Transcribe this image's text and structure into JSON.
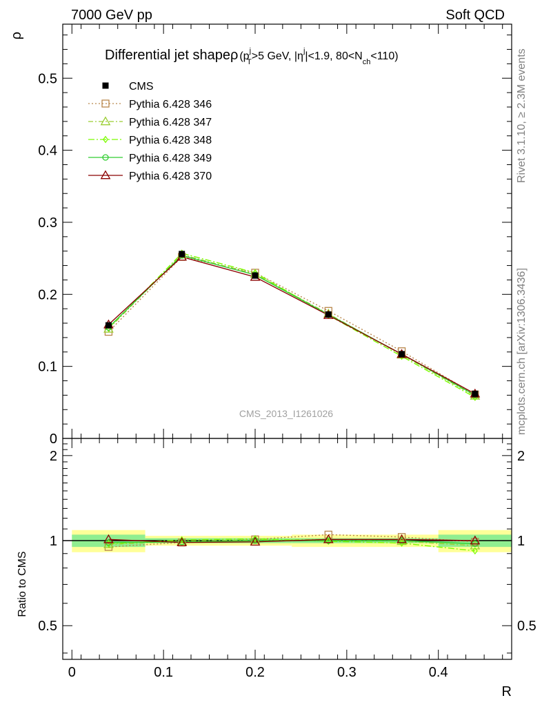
{
  "header": {
    "left": "7000 GeV pp",
    "right": "Soft QCD"
  },
  "plot_title": {
    "main": "Differential jet shapeρ",
    "sub": {
      "open": "(p",
      "sup_j": "j",
      "sub_T": "T",
      "mid1": ">5 GeV, |η",
      "mid2": "|<1.9, 80<N",
      "sub_ch": "ch",
      "close": "<110)"
    }
  },
  "side_labels": {
    "rivet": "Rivet 3.1.10, ≥ 2.3M events",
    "mcplots": "mcplots.cern.ch [arXiv:1306.3436]"
  },
  "watermark": "CMS_2013_I1261026",
  "colors": {
    "cms": "#000000",
    "p346": "#b8864a",
    "p347": "#9acd32",
    "p348": "#7cfc00",
    "p349": "#32cd32",
    "p370": "#8b0000",
    "band_stat": "#90ee90",
    "band_total": "#ffff99"
  },
  "chart_data": {
    "type": "line",
    "x": [
      0.04,
      0.12,
      0.2,
      0.28,
      0.36,
      0.44
    ],
    "x_bins": [
      [
        0.0,
        0.08
      ],
      [
        0.08,
        0.16
      ],
      [
        0.16,
        0.24
      ],
      [
        0.24,
        0.32
      ],
      [
        0.32,
        0.4
      ],
      [
        0.4,
        0.48
      ]
    ],
    "xlabel": "R",
    "xlim": [
      -0.01,
      0.48
    ],
    "xticks": [
      "0",
      "0.1",
      "0.2",
      "0.3",
      "0.4"
    ],
    "main_panel": {
      "ylabel": "ρ",
      "ylim": [
        0,
        0.575
      ],
      "yticks": [
        "0",
        "0.1",
        "0.2",
        "0.3",
        "0.4",
        "0.5"
      ],
      "series": [
        {
          "name": "CMS",
          "values": [
            0.157,
            0.256,
            0.226,
            0.172,
            0.117,
            0.062
          ]
        },
        {
          "name": "Pythia 6.428 346",
          "values": [
            0.148,
            0.252,
            0.23,
            0.177,
            0.121,
            0.061
          ]
        },
        {
          "name": "Pythia 6.428 347",
          "values": [
            0.152,
            0.255,
            0.228,
            0.173,
            0.116,
            0.059
          ]
        },
        {
          "name": "Pythia 6.428 348",
          "values": [
            0.153,
            0.257,
            0.23,
            0.171,
            0.114,
            0.057
          ]
        },
        {
          "name": "Pythia 6.428 349",
          "values": [
            0.154,
            0.254,
            0.227,
            0.172,
            0.117,
            0.06
          ]
        },
        {
          "name": "Pythia 6.428 370",
          "values": [
            0.158,
            0.252,
            0.224,
            0.171,
            0.117,
            0.062
          ]
        }
      ]
    },
    "ratio_panel": {
      "ylabel": "Ratio to CMS",
      "ylim": [
        0.38,
        2.3
      ],
      "yticks": [
        "0.5",
        "1",
        "2"
      ],
      "band_stat": [
        [
          0.95,
          1.05
        ],
        [
          0.98,
          1.02
        ],
        [
          0.98,
          1.02
        ],
        [
          0.98,
          1.02
        ],
        [
          0.98,
          1.02
        ],
        [
          0.95,
          1.05
        ]
      ],
      "band_total": [
        [
          0.91,
          1.09
        ],
        [
          0.96,
          1.04
        ],
        [
          0.96,
          1.04
        ],
        [
          0.95,
          1.05
        ],
        [
          0.95,
          1.05
        ],
        [
          0.91,
          1.09
        ]
      ],
      "series": [
        {
          "name": "Pythia 6.428 346",
          "values": [
            0.95,
            0.985,
            1.01,
            1.05,
            1.03,
            0.99
          ]
        },
        {
          "name": "Pythia 6.428 347",
          "values": [
            0.97,
            0.995,
            1.005,
            1.01,
            0.995,
            0.96
          ]
        },
        {
          "name": "Pythia 6.428 348",
          "values": [
            0.975,
            1.005,
            1.015,
            0.995,
            0.98,
            0.92
          ]
        },
        {
          "name": "Pythia 6.428 349",
          "values": [
            0.985,
            0.99,
            1.0,
            1.0,
            1.0,
            0.975
          ]
        },
        {
          "name": "Pythia 6.428 370",
          "values": [
            1.01,
            0.985,
            0.99,
            1.01,
            1.01,
            1.0
          ]
        }
      ]
    },
    "legend_position": "top-left"
  }
}
